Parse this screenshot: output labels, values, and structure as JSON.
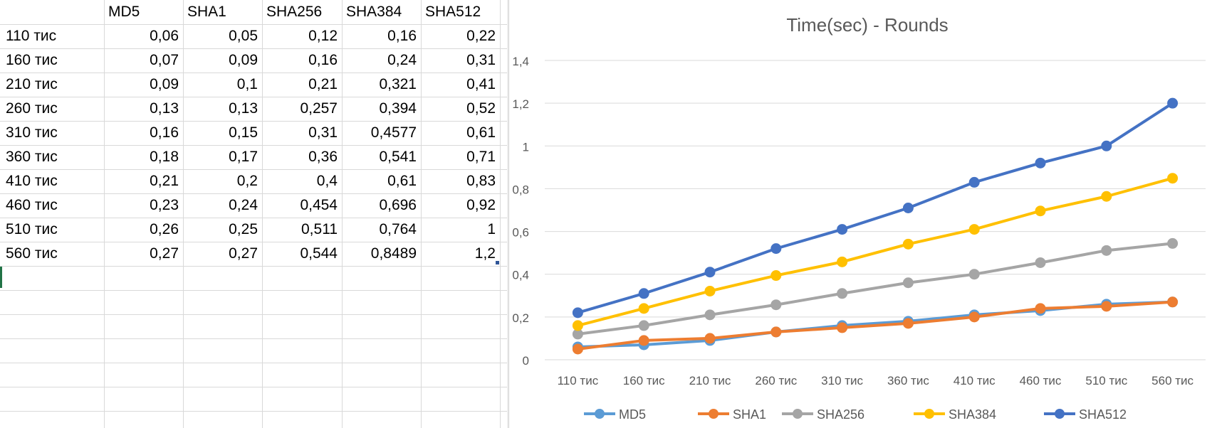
{
  "sheet": {
    "headers": [
      "MD5",
      "SHA1",
      "SHA256",
      "SHA384",
      "SHA512"
    ],
    "rows": [
      {
        "label": "110 тис",
        "cells": [
          "0,06",
          "0,05",
          "0,12",
          "0,16",
          "0,22"
        ]
      },
      {
        "label": "160 тис",
        "cells": [
          "0,07",
          "0,09",
          "0,16",
          "0,24",
          "0,31"
        ]
      },
      {
        "label": "210 тис",
        "cells": [
          "0,09",
          "0,1",
          "0,21",
          "0,321",
          "0,41"
        ]
      },
      {
        "label": "260 тис",
        "cells": [
          "0,13",
          "0,13",
          "0,257",
          "0,394",
          "0,52"
        ]
      },
      {
        "label": "310 тис",
        "cells": [
          "0,16",
          "0,15",
          "0,31",
          "0,4577",
          "0,61"
        ]
      },
      {
        "label": "360 тис",
        "cells": [
          "0,18",
          "0,17",
          "0,36",
          "0,541",
          "0,71"
        ]
      },
      {
        "label": "410 тис",
        "cells": [
          "0,21",
          "0,2",
          "0,4",
          "0,61",
          "0,83"
        ]
      },
      {
        "label": "460 тис",
        "cells": [
          "0,23",
          "0,24",
          "0,454",
          "0,696",
          "0,92"
        ]
      },
      {
        "label": "510 тис",
        "cells": [
          "0,26",
          "0,25",
          "0,511",
          "0,764",
          "1"
        ]
      },
      {
        "label": "560 тис",
        "cells": [
          "0,27",
          "0,27",
          "0,544",
          "0,8489",
          "1,2"
        ]
      }
    ]
  },
  "chart_data": {
    "type": "line",
    "title": "Time(sec) - Rounds",
    "categories": [
      "110 тис",
      "160 тис",
      "210 тис",
      "260 тис",
      "310 тис",
      "360 тис",
      "410 тис",
      "460 тис",
      "510 тис",
      "560 тис"
    ],
    "ylim": [
      0,
      1.4
    ],
    "yticks": [
      0,
      0.2,
      0.4,
      0.6,
      0.8,
      1,
      1.2,
      1.4
    ],
    "ytick_labels": [
      "0",
      "0,2",
      "0,4",
      "0,6",
      "0,8",
      "1",
      "1,2",
      "1,4"
    ],
    "grid": true,
    "legend": "bottom",
    "series": [
      {
        "name": "MD5",
        "color": "#5b9bd5",
        "values": [
          0.06,
          0.07,
          0.09,
          0.13,
          0.16,
          0.18,
          0.21,
          0.23,
          0.26,
          0.27
        ]
      },
      {
        "name": "SHA1",
        "color": "#ed7d31",
        "values": [
          0.05,
          0.09,
          0.1,
          0.13,
          0.15,
          0.17,
          0.2,
          0.24,
          0.25,
          0.27
        ]
      },
      {
        "name": "SHA256",
        "color": "#a5a5a5",
        "values": [
          0.12,
          0.16,
          0.21,
          0.257,
          0.31,
          0.36,
          0.4,
          0.454,
          0.511,
          0.544
        ]
      },
      {
        "name": "SHA384",
        "color": "#ffc000",
        "values": [
          0.16,
          0.24,
          0.321,
          0.394,
          0.4577,
          0.541,
          0.61,
          0.696,
          0.764,
          0.8489
        ]
      },
      {
        "name": "SHA512",
        "color": "#4472c4",
        "values": [
          0.22,
          0.31,
          0.41,
          0.52,
          0.61,
          0.71,
          0.83,
          0.92,
          1,
          1.2
        ]
      }
    ]
  }
}
